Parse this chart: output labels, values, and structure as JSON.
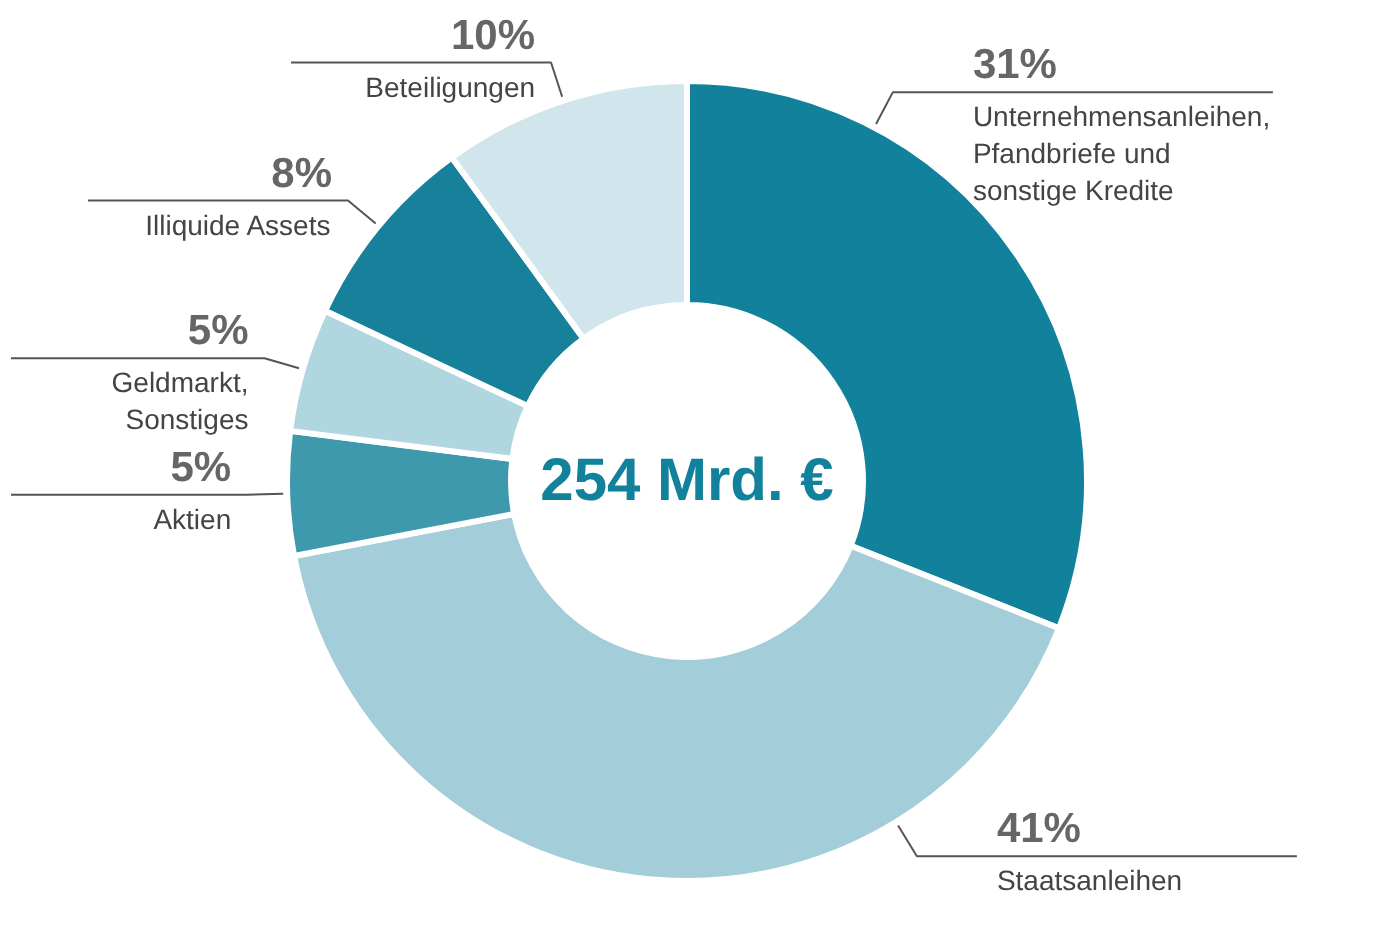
{
  "chart_data": {
    "type": "donut",
    "categories": [
      "Unternehmensanleihen, Pfandbriefe und sonstige Kredite",
      "Staatsanleihen",
      "Aktien",
      "Geldmarkt, Sonstiges",
      "Illiquide Assets",
      "Beteiligungen"
    ],
    "values": [
      31,
      41,
      5,
      5,
      8,
      10
    ],
    "colors": [
      "#12819b",
      "#a3cdd8",
      "#3f99ad",
      "#b0d6df",
      "#17809a",
      "#d0e6ec"
    ],
    "value_labels": [
      "31%",
      "41%",
      "5%",
      "5%",
      "8%",
      "10%"
    ],
    "annotations": [
      "254 Mrd. €"
    ]
  }
}
